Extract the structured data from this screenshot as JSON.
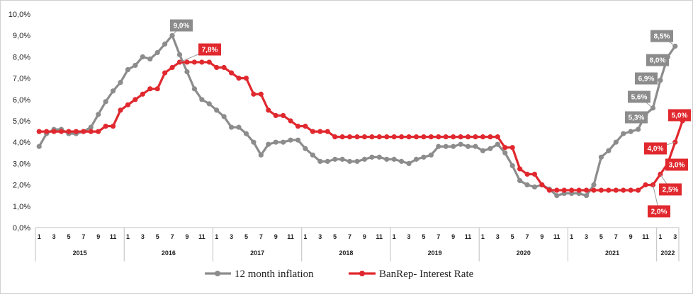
{
  "chart_data": {
    "type": "line",
    "title": "",
    "xlabel": "",
    "ylabel": "",
    "ylim": [
      0,
      10
    ],
    "grid": false,
    "legend_position": "bottom",
    "y_tick_labels": [
      "0,0%",
      "1,0%",
      "2,0%",
      "3,0%",
      "4,0%",
      "5,0%",
      "6,0%",
      "7,0%",
      "8,0%",
      "9,0%",
      "10,0%"
    ],
    "month_tick_labels": [
      "1",
      "3",
      "5",
      "7",
      "9",
      "11"
    ],
    "month_tick_labels_2022": [
      "1",
      "3"
    ],
    "years": [
      "2015",
      "2016",
      "2017",
      "2018",
      "2019",
      "2020",
      "2021",
      "2022"
    ],
    "x_start": "2015-01",
    "series": [
      {
        "name": "12 month inflation",
        "color": "#8c8c8c",
        "values": [
          3.8,
          4.4,
          4.6,
          4.6,
          4.4,
          4.4,
          4.5,
          4.7,
          5.3,
          5.9,
          6.4,
          6.8,
          7.4,
          7.6,
          8.0,
          7.9,
          8.2,
          8.6,
          9.0,
          8.1,
          7.3,
          6.5,
          6.0,
          5.8,
          5.5,
          5.2,
          4.7,
          4.7,
          4.4,
          4.0,
          3.4,
          3.9,
          4.0,
          4.0,
          4.1,
          4.1,
          3.7,
          3.4,
          3.1,
          3.1,
          3.2,
          3.2,
          3.1,
          3.1,
          3.2,
          3.3,
          3.3,
          3.2,
          3.2,
          3.1,
          3.0,
          3.2,
          3.3,
          3.4,
          3.8,
          3.8,
          3.8,
          3.9,
          3.8,
          3.8,
          3.6,
          3.7,
          3.9,
          3.5,
          2.9,
          2.2,
          2.0,
          1.9,
          2.0,
          1.8,
          1.5,
          1.6,
          1.6,
          1.6,
          1.5,
          2.0,
          3.3,
          3.6,
          4.0,
          4.4,
          4.5,
          4.6,
          5.3,
          5.6,
          6.9,
          8.0,
          8.5
        ],
        "labels": [
          {
            "index": 18,
            "text": "9,0%"
          },
          {
            "index": 82,
            "text": "5,3%"
          },
          {
            "index": 83,
            "text": "5,6%"
          },
          {
            "index": 84,
            "text": "6,9%"
          },
          {
            "index": 85,
            "text": "8,0%"
          },
          {
            "index": 86,
            "text": "8,5%"
          }
        ]
      },
      {
        "name": "BanRep- Interest Rate",
        "color": "#e0282e",
        "values": [
          4.5,
          4.5,
          4.5,
          4.5,
          4.5,
          4.5,
          4.5,
          4.5,
          4.5,
          4.75,
          4.75,
          5.5,
          5.75,
          6.0,
          6.25,
          6.5,
          6.5,
          7.25,
          7.5,
          7.75,
          7.75,
          7.75,
          7.75,
          7.75,
          7.5,
          7.5,
          7.25,
          7.0,
          7.0,
          6.25,
          6.25,
          5.5,
          5.25,
          5.25,
          5.0,
          4.75,
          4.75,
          4.5,
          4.5,
          4.5,
          4.25,
          4.25,
          4.25,
          4.25,
          4.25,
          4.25,
          4.25,
          4.25,
          4.25,
          4.25,
          4.25,
          4.25,
          4.25,
          4.25,
          4.25,
          4.25,
          4.25,
          4.25,
          4.25,
          4.25,
          4.25,
          4.25,
          4.25,
          3.75,
          3.75,
          2.75,
          2.5,
          2.5,
          2.0,
          1.75,
          1.75,
          1.75,
          1.75,
          1.75,
          1.75,
          1.75,
          1.75,
          1.75,
          1.75,
          1.75,
          1.75,
          1.75,
          2.0,
          2.0,
          2.5,
          3.0,
          4.0,
          5.0
        ],
        "labels": [
          {
            "index": 19,
            "text": "7,8%"
          },
          {
            "index": 83,
            "text": "2,0%"
          },
          {
            "index": 84,
            "text": "2,5%"
          },
          {
            "index": 85,
            "text": "3,0%"
          },
          {
            "index": 86,
            "text": "4,0%"
          },
          {
            "index": 87,
            "text": "5,0%"
          }
        ]
      }
    ]
  }
}
